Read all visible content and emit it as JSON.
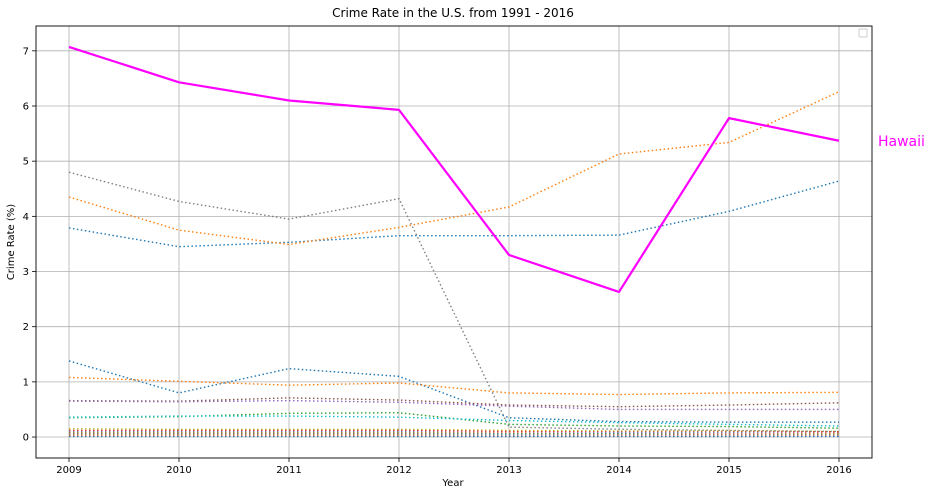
{
  "chart_data": {
    "type": "line",
    "title": "Crime Rate in the U.S. from 1991 - 2016",
    "xlabel": "Year",
    "ylabel": "Crime Rate (%)",
    "x": [
      "2009",
      "2010",
      "2011",
      "2012",
      "2013",
      "2014",
      "2015",
      "2016"
    ],
    "xlim": [
      2008.7,
      2016.3
    ],
    "ylim": [
      -0.38,
      7.45
    ],
    "yticks": [
      0,
      1,
      2,
      3,
      4,
      5,
      6,
      7
    ],
    "grid": true,
    "legend": "top-right",
    "highlight": {
      "name": "Hawaii",
      "color": "#ff00ff",
      "values": [
        7.07,
        6.43,
        6.1,
        5.93,
        3.3,
        2.63,
        5.78,
        5.37
      ]
    },
    "background_series": [
      {
        "color": "#1f77b4",
        "values": [
          3.79,
          3.45,
          3.53,
          3.65,
          3.65,
          3.66,
          4.09,
          4.64
        ]
      },
      {
        "color": "#ff7f0e",
        "values": [
          4.35,
          3.75,
          3.49,
          3.8,
          4.17,
          5.13,
          5.34,
          6.26
        ]
      },
      {
        "color": "#7f7f7f",
        "values": [
          4.8,
          4.27,
          3.95,
          4.32,
          0.18,
          0.14,
          0.12,
          0.1
        ]
      },
      {
        "color": "#1f77b4",
        "values": [
          1.38,
          0.8,
          1.24,
          1.1,
          0.35,
          0.28,
          0.27,
          0.27
        ]
      },
      {
        "color": "#ff7f0e",
        "values": [
          1.08,
          1.01,
          0.94,
          0.98,
          0.8,
          0.77,
          0.8,
          0.81
        ]
      },
      {
        "color": "#8c564b",
        "values": [
          0.66,
          0.65,
          0.71,
          0.67,
          0.58,
          0.55,
          0.58,
          0.62
        ]
      },
      {
        "color": "#9467bd",
        "values": [
          0.65,
          0.64,
          0.66,
          0.63,
          0.56,
          0.5,
          0.5,
          0.5
        ]
      },
      {
        "color": "#2ca02c",
        "values": [
          0.35,
          0.37,
          0.43,
          0.44,
          0.23,
          0.2,
          0.19,
          0.16
        ]
      },
      {
        "color": "#17becf",
        "values": [
          0.36,
          0.38,
          0.38,
          0.36,
          0.3,
          0.26,
          0.23,
          0.2
        ]
      },
      {
        "color": "#bcbd22",
        "values": [
          0.15,
          0.14,
          0.14,
          0.14,
          0.12,
          0.11,
          0.11,
          0.1
        ]
      },
      {
        "color": "#d62728",
        "values": [
          0.12,
          0.12,
          0.12,
          0.12,
          0.1,
          0.09,
          0.09,
          0.09
        ]
      },
      {
        "color": "#e377c2",
        "values": [
          0.1,
          0.1,
          0.1,
          0.1,
          0.08,
          0.08,
          0.08,
          0.07
        ]
      },
      {
        "color": "#1f77b4",
        "values": [
          0.09,
          0.09,
          0.09,
          0.09,
          0.07,
          0.07,
          0.07,
          0.06
        ]
      },
      {
        "color": "#ff7f0e",
        "values": [
          0.08,
          0.08,
          0.08,
          0.08,
          0.07,
          0.06,
          0.06,
          0.06
        ]
      },
      {
        "color": "#2ca02c",
        "values": [
          0.07,
          0.07,
          0.07,
          0.07,
          0.06,
          0.06,
          0.05,
          0.05
        ]
      },
      {
        "color": "#9467bd",
        "values": [
          0.06,
          0.06,
          0.06,
          0.06,
          0.05,
          0.05,
          0.05,
          0.04
        ]
      },
      {
        "color": "#8c564b",
        "values": [
          0.05,
          0.05,
          0.05,
          0.05,
          0.04,
          0.04,
          0.04,
          0.04
        ]
      },
      {
        "color": "#7f7f7f",
        "values": [
          0.04,
          0.04,
          0.04,
          0.04,
          0.04,
          0.03,
          0.03,
          0.03
        ]
      },
      {
        "color": "#bcbd22",
        "values": [
          0.04,
          0.04,
          0.04,
          0.04,
          0.03,
          0.03,
          0.03,
          0.03
        ]
      },
      {
        "color": "#17becf",
        "values": [
          0.03,
          0.03,
          0.03,
          0.03,
          0.03,
          0.02,
          0.02,
          0.02
        ]
      },
      {
        "color": "#d62728",
        "values": [
          0.03,
          0.03,
          0.03,
          0.03,
          0.02,
          0.02,
          0.02,
          0.02
        ]
      },
      {
        "color": "#e377c2",
        "values": [
          0.02,
          0.02,
          0.02,
          0.02,
          0.02,
          0.02,
          0.02,
          0.02
        ]
      },
      {
        "color": "#ff7f0e",
        "values": [
          0.02,
          0.02,
          0.02,
          0.02,
          0.01,
          0.01,
          0.01,
          0.01
        ]
      },
      {
        "color": "#1f77b4",
        "values": [
          0.01,
          0.01,
          0.01,
          0.01,
          0.01,
          0.01,
          0.01,
          0.01
        ]
      }
    ]
  }
}
